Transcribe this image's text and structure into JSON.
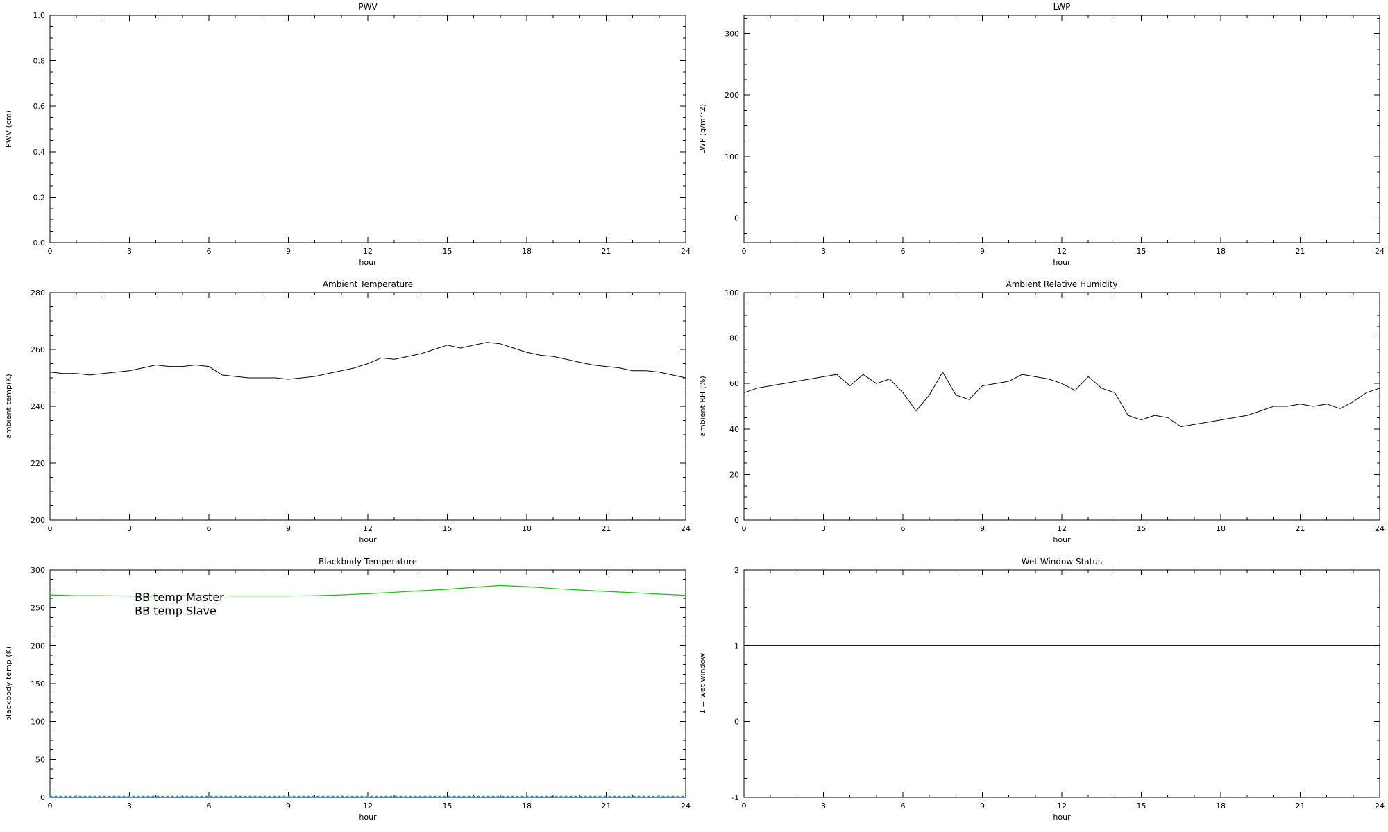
{
  "page": {
    "background": "#ffffff"
  },
  "colors": {
    "axis": "#000000",
    "bb_master": "#1E90FF",
    "bb_slave": "#00CC00"
  },
  "chart_data": [
    {
      "id": "pwv",
      "type": "line",
      "title": "PWV",
      "xlabel": "hour",
      "ylabel": "PWV (cm)",
      "xlim": [
        0,
        24
      ],
      "ylim": [
        0,
        1
      ],
      "xticks": [
        0,
        3,
        6,
        9,
        12,
        15,
        18,
        21,
        24
      ],
      "xtick_labels": [
        "0",
        "3",
        "6",
        "9",
        "12",
        "15",
        "18",
        "21",
        "24"
      ],
      "yticks": [
        0,
        0.2,
        0.4,
        0.6,
        0.8,
        1
      ],
      "ytick_labels": [
        "0.0",
        "0.2",
        "0.4",
        "0.6",
        "0.8",
        "1.0"
      ],
      "x_minor_step": 1,
      "y_minor_step": 0.05,
      "grid": false,
      "series": []
    },
    {
      "id": "lwp",
      "type": "line",
      "title": "LWP",
      "xlabel": "hour",
      "ylabel": "LWP (g/m^2)",
      "xlim": [
        0,
        24
      ],
      "ylim": [
        -40,
        330
      ],
      "xticks": [
        0,
        3,
        6,
        9,
        12,
        15,
        18,
        21,
        24
      ],
      "xtick_labels": [
        "0",
        "3",
        "6",
        "9",
        "12",
        "15",
        "18",
        "21",
        "24"
      ],
      "yticks": [
        0,
        100,
        200,
        300
      ],
      "ytick_labels": [
        "0",
        "100",
        "200",
        "300"
      ],
      "x_minor_step": 1,
      "y_minor_step": 25,
      "grid": false,
      "series": []
    },
    {
      "id": "ambient_temperature",
      "type": "line",
      "title": "Ambient Temperature",
      "xlabel": "hour",
      "ylabel": "ambient temp(K)",
      "xlim": [
        0,
        24
      ],
      "ylim": [
        200,
        280
      ],
      "xticks": [
        0,
        3,
        6,
        9,
        12,
        15,
        18,
        21,
        24
      ],
      "xtick_labels": [
        "0",
        "3",
        "6",
        "9",
        "12",
        "15",
        "18",
        "21",
        "24"
      ],
      "yticks": [
        200,
        220,
        240,
        260,
        280
      ],
      "ytick_labels": [
        "200",
        "220",
        "240",
        "260",
        "280"
      ],
      "x_minor_step": 1,
      "y_minor_step": 5,
      "grid": false,
      "series": [
        {
          "name": "ambient temperature",
          "color": "#000000",
          "width": 1,
          "x": [
            0,
            0.5,
            1,
            1.5,
            2,
            2.5,
            3,
            3.5,
            4,
            4.5,
            5,
            5.5,
            6,
            6.5,
            7,
            7.5,
            8,
            8.5,
            9,
            9.5,
            10,
            10.5,
            11,
            11.5,
            12,
            12.5,
            13,
            13.5,
            14,
            14.5,
            15,
            15.5,
            16,
            16.5,
            17,
            17.5,
            18,
            18.5,
            19,
            19.5,
            20,
            20.5,
            21,
            21.5,
            22,
            22.5,
            23,
            23.5,
            24
          ],
          "y": [
            252,
            251.5,
            251.5,
            251,
            251.5,
            252,
            252.5,
            253.5,
            254.5,
            254,
            254,
            254.5,
            254,
            251,
            250.5,
            250,
            250,
            250,
            249.5,
            250,
            250.5,
            251.5,
            252.5,
            253.5,
            255,
            257,
            256.5,
            257.5,
            258.5,
            260,
            261.5,
            260.5,
            261.5,
            262.5,
            262,
            260.5,
            259,
            258,
            257.5,
            256.5,
            255.5,
            254.5,
            254,
            253.5,
            252.5,
            252.5,
            252,
            251,
            250
          ]
        }
      ]
    },
    {
      "id": "ambient_rh",
      "type": "line",
      "title": "Ambient Relative Humidity",
      "xlabel": "hour",
      "ylabel": "ambient RH (%)",
      "xlim": [
        0,
        24
      ],
      "ylim": [
        0,
        100
      ],
      "xticks": [
        0,
        3,
        6,
        9,
        12,
        15,
        18,
        21,
        24
      ],
      "xtick_labels": [
        "0",
        "3",
        "6",
        "9",
        "12",
        "15",
        "18",
        "21",
        "24"
      ],
      "yticks": [
        0,
        20,
        40,
        60,
        80,
        100
      ],
      "ytick_labels": [
        "0",
        "20",
        "40",
        "60",
        "80",
        "100"
      ],
      "x_minor_step": 1,
      "y_minor_step": 5,
      "grid": false,
      "series": [
        {
          "name": "ambient relative humidity",
          "color": "#000000",
          "width": 1,
          "x": [
            0,
            0.5,
            1,
            1.5,
            2,
            2.5,
            3,
            3.5,
            4,
            4.5,
            5,
            5.5,
            6,
            6.5,
            7,
            7.5,
            8,
            8.5,
            9,
            9.5,
            10,
            10.5,
            11,
            11.5,
            12,
            12.5,
            13,
            13.5,
            14,
            14.5,
            15,
            15.5,
            16,
            16.5,
            17,
            17.5,
            18,
            18.5,
            19,
            19.5,
            20,
            20.5,
            21,
            21.5,
            22,
            22.5,
            23,
            23.5,
            24
          ],
          "y": [
            56,
            58,
            59,
            60,
            61,
            62,
            63,
            64,
            59,
            64,
            60,
            62,
            56,
            48,
            55,
            65,
            55,
            53,
            59,
            60,
            61,
            64,
            63,
            62,
            60,
            57,
            63,
            58,
            56,
            46,
            44,
            46,
            45,
            41,
            42,
            43,
            44,
            45,
            46,
            48,
            50,
            50,
            51,
            50,
            51,
            49,
            52,
            56,
            58
          ]
        }
      ]
    },
    {
      "id": "blackbody",
      "type": "line",
      "title": "Blackbody Temperature",
      "xlabel": "hour",
      "ylabel": "blackbody temp (K)",
      "xlim": [
        0,
        24
      ],
      "ylim": [
        0,
        300
      ],
      "xticks": [
        0,
        3,
        6,
        9,
        12,
        15,
        18,
        21,
        24
      ],
      "xtick_labels": [
        "0",
        "3",
        "6",
        "9",
        "12",
        "15",
        "18",
        "21",
        "24"
      ],
      "yticks": [
        0,
        50,
        100,
        150,
        200,
        250,
        300
      ],
      "ytick_labels": [
        "0",
        "50",
        "100",
        "150",
        "200",
        "250",
        "300"
      ],
      "x_minor_step": 1,
      "y_minor_step": 12.5,
      "grid": false,
      "series": [
        {
          "name": "BB temp Slave",
          "color": "#00CC00",
          "width": 1.2,
          "x": [
            0,
            1,
            2,
            3,
            4,
            5,
            6,
            7,
            8,
            9,
            10,
            11,
            12,
            13,
            14,
            15,
            16,
            17,
            18,
            19,
            20,
            21,
            22,
            23,
            24
          ],
          "y": [
            267,
            266,
            266,
            265.5,
            265.5,
            266,
            266,
            265.5,
            265.5,
            265.5,
            266,
            267,
            268.5,
            270.5,
            272.5,
            274.5,
            277,
            279.5,
            278,
            275.5,
            273.5,
            271.5,
            270,
            268,
            266.5
          ]
        },
        {
          "name": "BB temp Master",
          "color": "#1E90FF",
          "width": 1.2,
          "dash": "3,4",
          "x": [
            0,
            24
          ],
          "y": [
            1.5,
            1.5
          ]
        }
      ],
      "legend": [
        {
          "label": "BB temp Master",
          "color": "#1E90FF",
          "x": 3.2,
          "y": 259
        },
        {
          "label": "BB temp Slave",
          "color": "#00CC00",
          "x": 3.2,
          "y": 241
        }
      ]
    },
    {
      "id": "wet_window",
      "type": "line",
      "title": "Wet Window Status",
      "xlabel": "hour",
      "ylabel": "1 = wet window",
      "xlim": [
        0,
        24
      ],
      "ylim": [
        -1,
        2
      ],
      "xticks": [
        0,
        3,
        6,
        9,
        12,
        15,
        18,
        21,
        24
      ],
      "xtick_labels": [
        "0",
        "3",
        "6",
        "9",
        "12",
        "15",
        "18",
        "21",
        "24"
      ],
      "yticks": [
        -1,
        0,
        1,
        2
      ],
      "ytick_labels": [
        "-1",
        "0",
        "1",
        "2"
      ],
      "x_minor_step": 1,
      "y_minor_step": 0.25,
      "grid": false,
      "series": [
        {
          "name": "wet window status",
          "color": "#000000",
          "width": 1.2,
          "x": [
            0.2,
            24
          ],
          "y": [
            1,
            1
          ]
        }
      ]
    }
  ]
}
